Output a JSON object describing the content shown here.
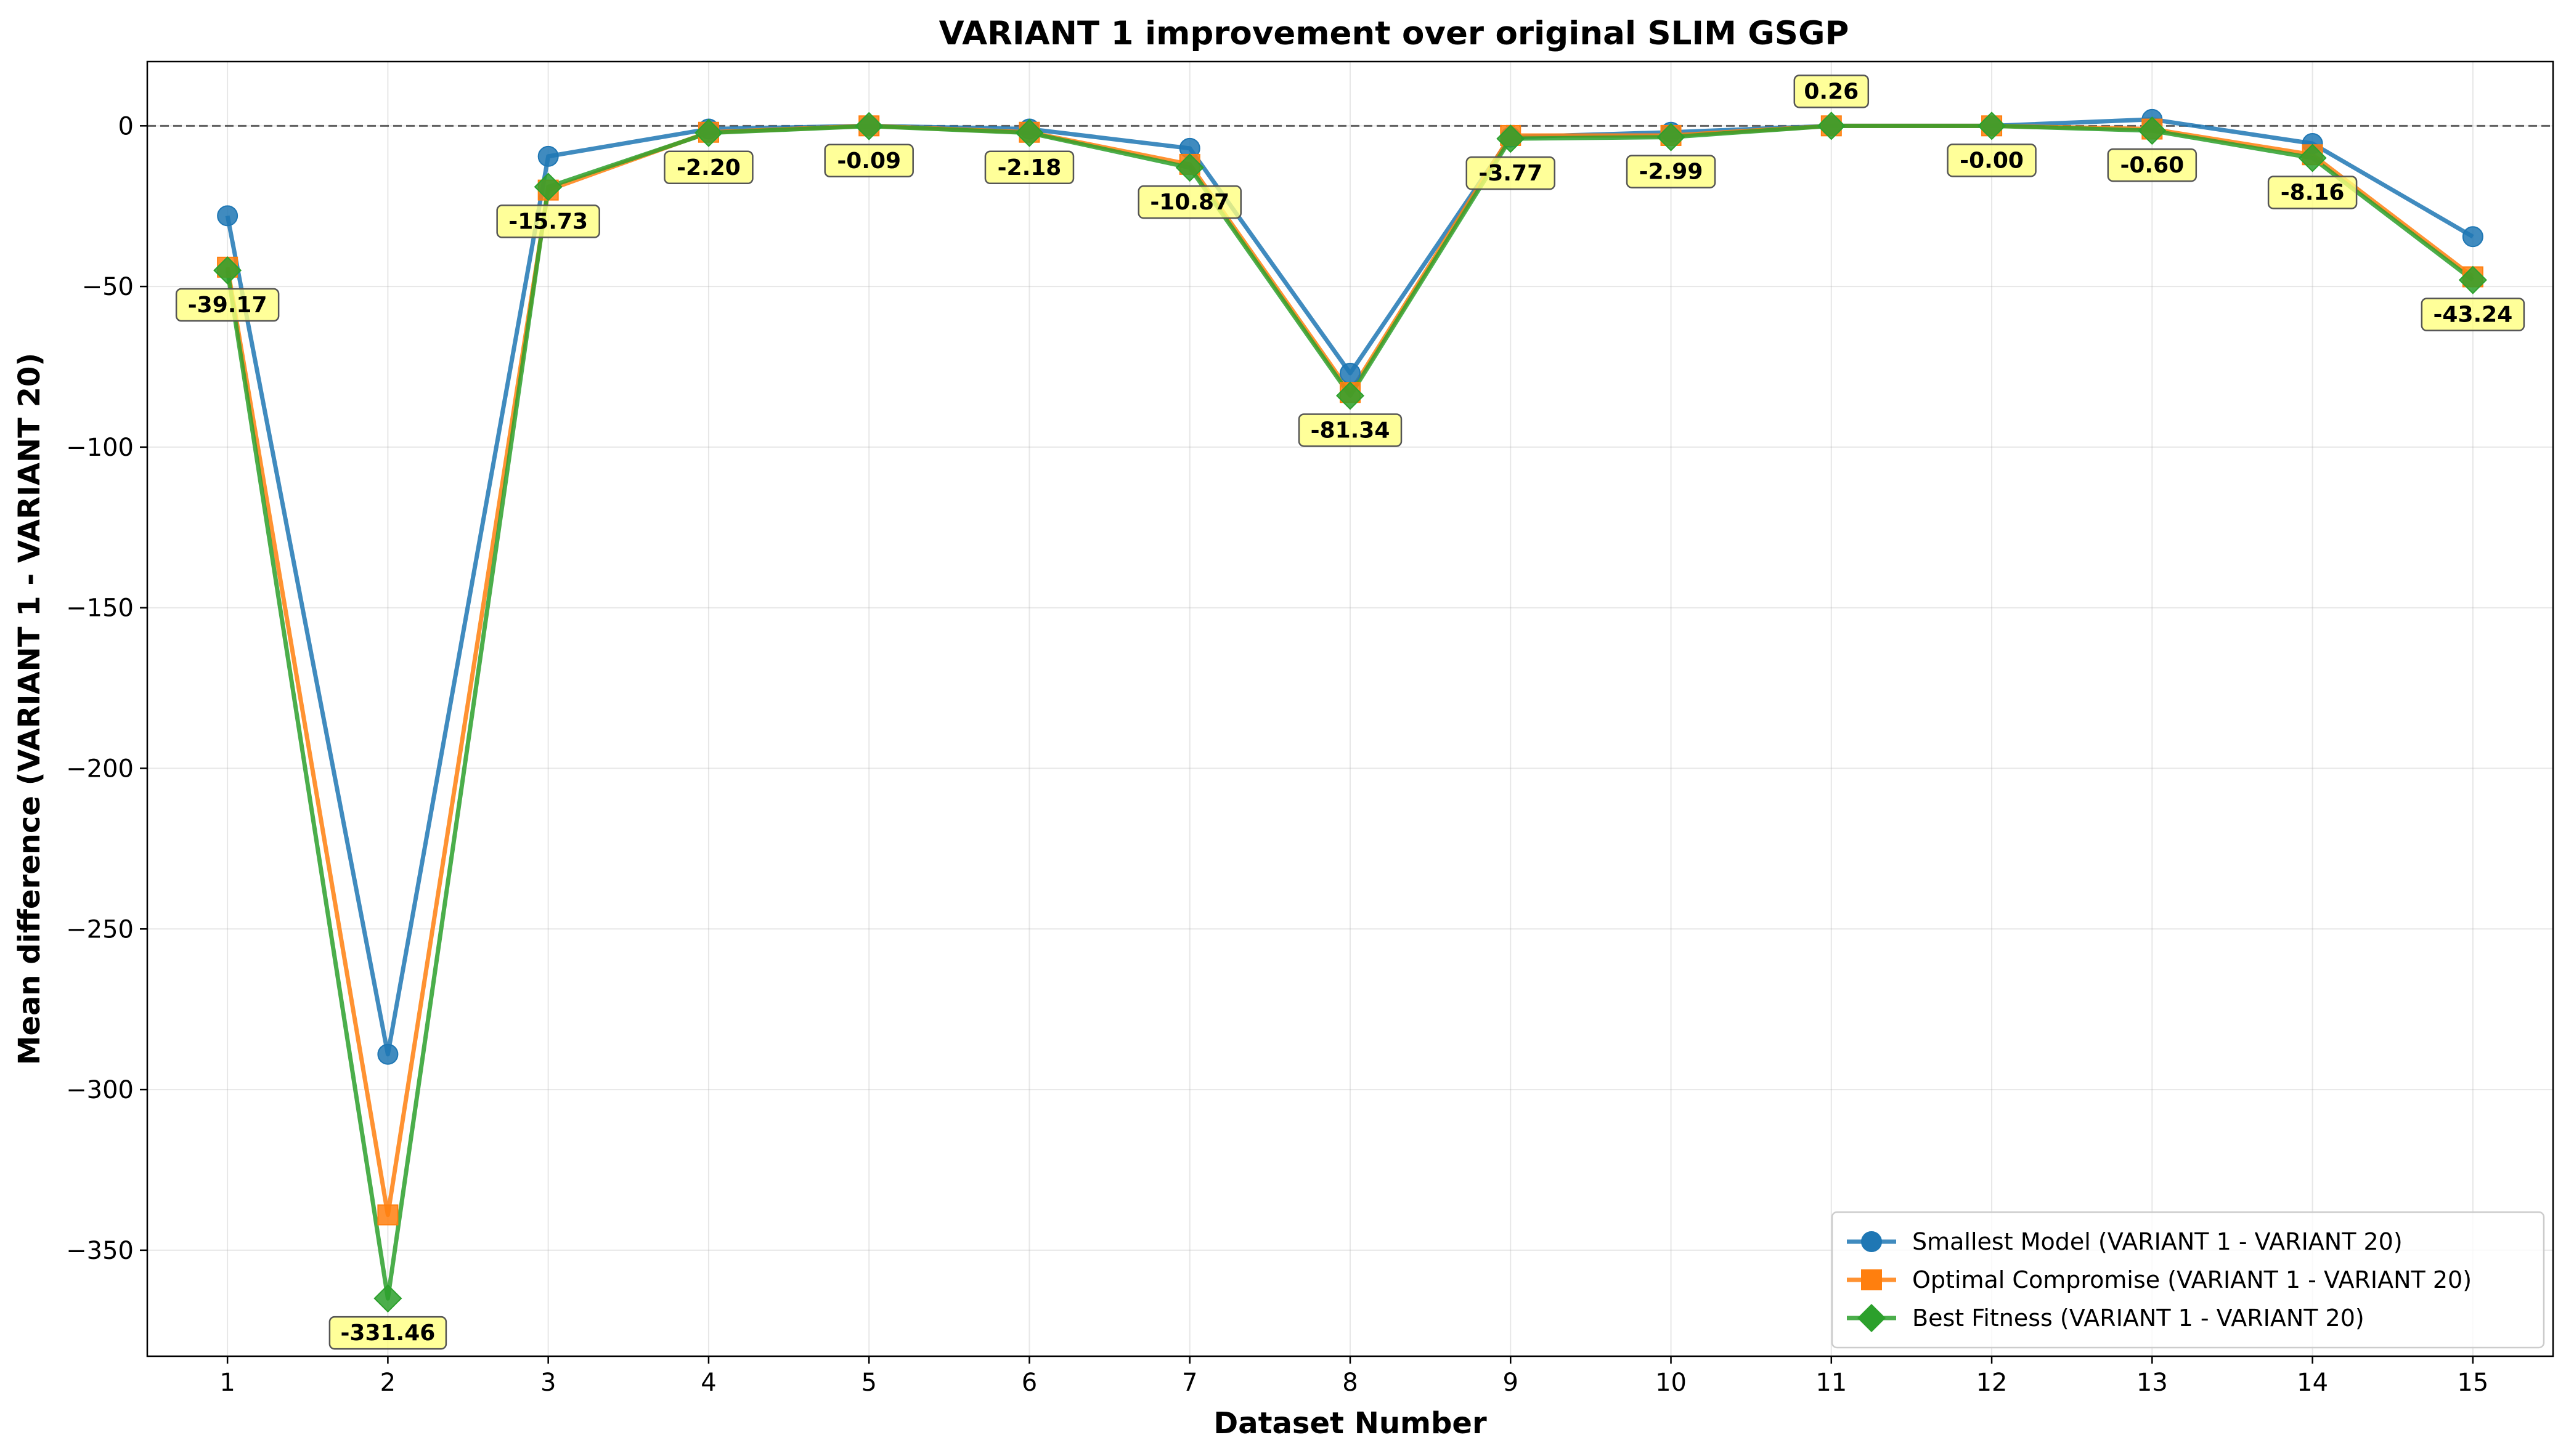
{
  "chart_data": {
    "type": "line",
    "title": "VARIANT 1 improvement over original SLIM GSGP",
    "xlabel": "Dataset Number",
    "ylabel": "Mean difference (VARIANT 1 - VARIANT 20)",
    "x": [
      1,
      2,
      3,
      4,
      5,
      6,
      7,
      8,
      9,
      10,
      11,
      12,
      13,
      14,
      15
    ],
    "xlim": [
      0.5,
      15.5
    ],
    "ylim": [
      -383,
      20
    ],
    "yticks": [
      0,
      -50,
      -100,
      -150,
      -200,
      -250,
      -300,
      -350
    ],
    "ytick_labels": [
      "0",
      "−50",
      "−100",
      "−150",
      "−200",
      "−250",
      "−300",
      "−350"
    ],
    "grid": true,
    "reference_line": 0,
    "legend_position": "lower-right",
    "series": [
      {
        "name": "Smallest Model (VARIANT 1 - VARIANT 20)",
        "color": "#1f77b4",
        "marker": "circle",
        "values": [
          -28,
          -289,
          -9.5,
          -1,
          0,
          -1,
          -7,
          -77,
          -3.5,
          -2,
          0,
          0,
          2,
          -5.5,
          -34.5
        ]
      },
      {
        "name": "Optimal Compromise (VARIANT 1 - VARIANT 20)",
        "color": "#ff7f0e",
        "marker": "square",
        "values": [
          -44,
          -339,
          -20,
          -2,
          0,
          -2,
          -12,
          -83,
          -3,
          -3,
          0,
          0,
          -1,
          -9,
          -47
        ]
      },
      {
        "name": "Best Fitness (VARIANT 1 - VARIANT 20)",
        "color": "#2ca02c",
        "marker": "diamond",
        "values": [
          -45,
          -365,
          -19,
          -2.2,
          -0.09,
          -2.2,
          -13,
          -84,
          -4,
          -3.5,
          0,
          0,
          -1.5,
          -10,
          -48
        ]
      }
    ],
    "annotations": [
      {
        "x": 1,
        "y": -45,
        "text": "-39.17",
        "position": "below"
      },
      {
        "x": 2,
        "y": -365,
        "text": "-331.46",
        "position": "below"
      },
      {
        "x": 3,
        "y": -19,
        "text": "-15.73",
        "position": "below"
      },
      {
        "x": 4,
        "y": -2.2,
        "text": "-2.20",
        "position": "below"
      },
      {
        "x": 5,
        "y": -0.09,
        "text": "-0.09",
        "position": "below"
      },
      {
        "x": 6,
        "y": -2.2,
        "text": "-2.18",
        "position": "below"
      },
      {
        "x": 7,
        "y": -13,
        "text": "-10.87",
        "position": "below"
      },
      {
        "x": 8,
        "y": -84,
        "text": "-81.34",
        "position": "below"
      },
      {
        "x": 9,
        "y": -4,
        "text": "-3.77",
        "position": "below"
      },
      {
        "x": 10,
        "y": -3.5,
        "text": "-2.99",
        "position": "below"
      },
      {
        "x": 11,
        "y": 0,
        "text": "0.26",
        "position": "above"
      },
      {
        "x": 12,
        "y": 0,
        "text": "-0.00",
        "position": "below"
      },
      {
        "x": 13,
        "y": -1.5,
        "text": "-0.60",
        "position": "below"
      },
      {
        "x": 14,
        "y": -10,
        "text": "-8.16",
        "position": "below"
      },
      {
        "x": 15,
        "y": -48,
        "text": "-43.24",
        "position": "below"
      }
    ],
    "annotation_style": {
      "fill": "#ffff80",
      "edge": "#555555"
    }
  }
}
